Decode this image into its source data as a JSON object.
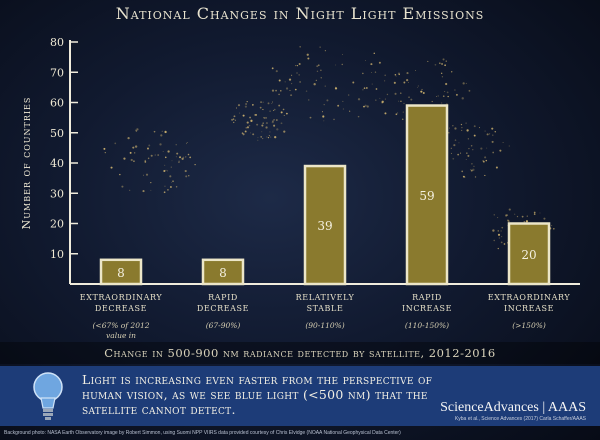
{
  "title": "National Changes in Night Light Emissions",
  "chart_data": {
    "type": "bar",
    "ylabel": "Number of countries",
    "xlabel": "Change in 500-900 nm radiance detected by satellite, 2012-2016",
    "ylim": [
      0,
      80
    ],
    "yticks": [
      10,
      20,
      30,
      40,
      50,
      60,
      70,
      80
    ],
    "grid": false,
    "categories": [
      {
        "name": "Extraordinary decrease",
        "range": "(<67% of 2012 value in 2016)"
      },
      {
        "name": "Rapid decrease",
        "range": "(67-90%)"
      },
      {
        "name": "Relatively stable",
        "range": "(90-110%)"
      },
      {
        "name": "Rapid increase",
        "range": "(110-150%)"
      },
      {
        "name": "Extraordinary increase",
        "range": "(>150%)"
      }
    ],
    "values": [
      8,
      8,
      39,
      59,
      20
    ],
    "bar_color": "#8a7a2e",
    "bar_edge_color": "#ece6c8"
  },
  "callout": {
    "icon": "lightbulb-icon",
    "text": "Light is increasing even faster from the perspective of human vision, as we see blue light (<500 nm) that the satellite cannot detect."
  },
  "brand": {
    "name": "ScienceAdvances | AAAS",
    "sub": "Kyba et al., Science Advances (2017)   Carla Schaffer/AAAS"
  },
  "credit": "Background photo: NASA Earth Observatory image by Robert Simmon, using Suomi NPP VIIRS data provided courtesy of Chris Elvidge (NOAA National Geophysical Data Center)"
}
